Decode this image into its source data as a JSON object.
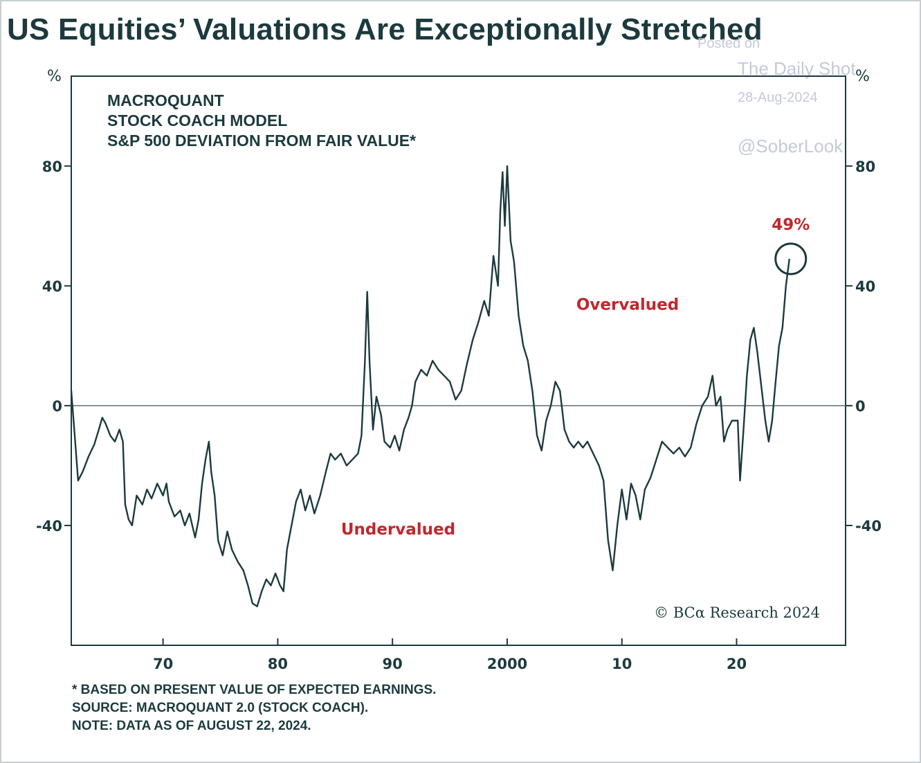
{
  "header": {
    "title": "US Equities’ Valuations Are Exceptionally Stretched"
  },
  "watermark": {
    "line1": "Posted on",
    "line2": "The Daily Shot",
    "line3": "28-Aug-2024",
    "line4": "@SoberLook"
  },
  "footer": {
    "note1": "* BASED ON PRESENT VALUE OF EXPECTED EARNINGS.",
    "note2": "SOURCE: MACROQUANT 2.0 (STOCK COACH).",
    "note3": "NOTE: DATA AS OF AUGUST 22, 2024."
  },
  "chart_data": {
    "type": "line",
    "subtitle_lines": [
      "MACROQUANT",
      "STOCK COACH MODEL",
      "S&P 500 DEVIATION FROM FAIR VALUE*"
    ],
    "y_unit_left": "%",
    "y_unit_right": "%",
    "xlim": [
      1962,
      2029.5
    ],
    "ylim": [
      -80,
      110
    ],
    "y_ticks": [
      80,
      40,
      0,
      -40
    ],
    "x_ticks": [
      {
        "value": 1970,
        "label": "70"
      },
      {
        "value": 1980,
        "label": "80"
      },
      {
        "value": 1990,
        "label": "90"
      },
      {
        "value": 2000,
        "label": "2000"
      },
      {
        "value": 2010,
        "label": "10"
      },
      {
        "value": 2020,
        "label": "20"
      }
    ],
    "reference_line": 0,
    "annotations": {
      "overvalued": {
        "text": "Overvalued",
        "x": 2010.5,
        "y": 32
      },
      "undervalued": {
        "text": "Undervalued",
        "x": 1990.5,
        "y": -43
      },
      "latest": {
        "text": "49%",
        "x": 2024.6,
        "y": 49
      },
      "copyright": "© BCα Research 2024"
    },
    "colors": {
      "line": "#1c3a3e",
      "accent": "#c0272d",
      "zero_line": "#5c6f71"
    },
    "series": [
      {
        "values": [
          [
            1962.0,
            5
          ],
          [
            1962.3,
            -10
          ],
          [
            1962.6,
            -25
          ],
          [
            1963.0,
            -22
          ],
          [
            1963.5,
            -17
          ],
          [
            1964.0,
            -13
          ],
          [
            1964.4,
            -8
          ],
          [
            1964.7,
            -4
          ],
          [
            1965.0,
            -6
          ],
          [
            1965.4,
            -10
          ],
          [
            1965.8,
            -12
          ],
          [
            1966.2,
            -8
          ],
          [
            1966.5,
            -12
          ],
          [
            1966.7,
            -33
          ],
          [
            1967.0,
            -38
          ],
          [
            1967.3,
            -40
          ],
          [
            1967.7,
            -30
          ],
          [
            1968.2,
            -33
          ],
          [
            1968.6,
            -28
          ],
          [
            1969.0,
            -31
          ],
          [
            1969.5,
            -26
          ],
          [
            1970.0,
            -30
          ],
          [
            1970.3,
            -26
          ],
          [
            1970.5,
            -32
          ],
          [
            1971.0,
            -37
          ],
          [
            1971.5,
            -35
          ],
          [
            1971.9,
            -40
          ],
          [
            1972.3,
            -36
          ],
          [
            1972.8,
            -44
          ],
          [
            1973.1,
            -38
          ],
          [
            1973.4,
            -26
          ],
          [
            1973.7,
            -18
          ],
          [
            1974.0,
            -12
          ],
          [
            1974.2,
            -22
          ],
          [
            1974.5,
            -30
          ],
          [
            1974.8,
            -45
          ],
          [
            1975.2,
            -50
          ],
          [
            1975.6,
            -42
          ],
          [
            1976.0,
            -48
          ],
          [
            1976.5,
            -52
          ],
          [
            1977.0,
            -55
          ],
          [
            1977.4,
            -60
          ],
          [
            1977.8,
            -66
          ],
          [
            1978.2,
            -67
          ],
          [
            1978.6,
            -62
          ],
          [
            1979.0,
            -58
          ],
          [
            1979.4,
            -60
          ],
          [
            1979.8,
            -56
          ],
          [
            1980.2,
            -60
          ],
          [
            1980.5,
            -62
          ],
          [
            1980.8,
            -48
          ],
          [
            1981.2,
            -40
          ],
          [
            1981.6,
            -32
          ],
          [
            1982.0,
            -28
          ],
          [
            1982.4,
            -35
          ],
          [
            1982.8,
            -30
          ],
          [
            1983.2,
            -36
          ],
          [
            1983.7,
            -30
          ],
          [
            1984.2,
            -22
          ],
          [
            1984.6,
            -16
          ],
          [
            1985.0,
            -18
          ],
          [
            1985.5,
            -16
          ],
          [
            1986.0,
            -20
          ],
          [
            1986.5,
            -18
          ],
          [
            1987.0,
            -16
          ],
          [
            1987.3,
            -10
          ],
          [
            1987.6,
            15
          ],
          [
            1987.8,
            38
          ],
          [
            1988.0,
            15
          ],
          [
            1988.3,
            -8
          ],
          [
            1988.6,
            3
          ],
          [
            1989.0,
            -3
          ],
          [
            1989.3,
            -12
          ],
          [
            1989.8,
            -14
          ],
          [
            1990.2,
            -10
          ],
          [
            1990.6,
            -15
          ],
          [
            1991.0,
            -8
          ],
          [
            1991.4,
            -4
          ],
          [
            1991.7,
            0
          ],
          [
            1992.0,
            8
          ],
          [
            1992.5,
            12
          ],
          [
            1993.0,
            10
          ],
          [
            1993.5,
            15
          ],
          [
            1994.0,
            12
          ],
          [
            1994.5,
            10
          ],
          [
            1995.0,
            8
          ],
          [
            1995.5,
            2
          ],
          [
            1996.0,
            5
          ],
          [
            1996.5,
            14
          ],
          [
            1997.0,
            22
          ],
          [
            1997.5,
            28
          ],
          [
            1998.0,
            35
          ],
          [
            1998.4,
            30
          ],
          [
            1998.8,
            50
          ],
          [
            1999.2,
            40
          ],
          [
            1999.4,
            65
          ],
          [
            1999.6,
            78
          ],
          [
            1999.8,
            60
          ],
          [
            2000.0,
            80
          ],
          [
            2000.3,
            55
          ],
          [
            2000.6,
            48
          ],
          [
            2001.0,
            30
          ],
          [
            2001.4,
            20
          ],
          [
            2001.8,
            15
          ],
          [
            2002.2,
            5
          ],
          [
            2002.6,
            -10
          ],
          [
            2003.0,
            -15
          ],
          [
            2003.4,
            -5
          ],
          [
            2003.8,
            0
          ],
          [
            2004.2,
            8
          ],
          [
            2004.6,
            5
          ],
          [
            2005.0,
            -8
          ],
          [
            2005.4,
            -12
          ],
          [
            2005.8,
            -14
          ],
          [
            2006.2,
            -12
          ],
          [
            2006.6,
            -14
          ],
          [
            2007.0,
            -12
          ],
          [
            2007.5,
            -16
          ],
          [
            2008.0,
            -20
          ],
          [
            2008.4,
            -25
          ],
          [
            2008.8,
            -45
          ],
          [
            2009.2,
            -55
          ],
          [
            2009.6,
            -40
          ],
          [
            2010.0,
            -28
          ],
          [
            2010.4,
            -38
          ],
          [
            2010.8,
            -26
          ],
          [
            2011.2,
            -30
          ],
          [
            2011.6,
            -38
          ],
          [
            2012.0,
            -28
          ],
          [
            2012.5,
            -24
          ],
          [
            2013.0,
            -18
          ],
          [
            2013.5,
            -12
          ],
          [
            2014.0,
            -14
          ],
          [
            2014.5,
            -16
          ],
          [
            2015.0,
            -14
          ],
          [
            2015.5,
            -17
          ],
          [
            2016.0,
            -14
          ],
          [
            2016.5,
            -6
          ],
          [
            2017.0,
            0
          ],
          [
            2017.5,
            3
          ],
          [
            2017.9,
            10
          ],
          [
            2018.2,
            0
          ],
          [
            2018.6,
            3
          ],
          [
            2018.9,
            -12
          ],
          [
            2019.2,
            -8
          ],
          [
            2019.6,
            -5
          ],
          [
            2020.1,
            -5
          ],
          [
            2020.3,
            -25
          ],
          [
            2020.6,
            -8
          ],
          [
            2020.9,
            10
          ],
          [
            2021.2,
            22
          ],
          [
            2021.5,
            26
          ],
          [
            2021.8,
            18
          ],
          [
            2022.2,
            5
          ],
          [
            2022.5,
            -5
          ],
          [
            2022.8,
            -12
          ],
          [
            2023.1,
            -5
          ],
          [
            2023.4,
            8
          ],
          [
            2023.7,
            20
          ],
          [
            2024.0,
            26
          ],
          [
            2024.3,
            40
          ],
          [
            2024.6,
            49
          ]
        ]
      }
    ]
  }
}
